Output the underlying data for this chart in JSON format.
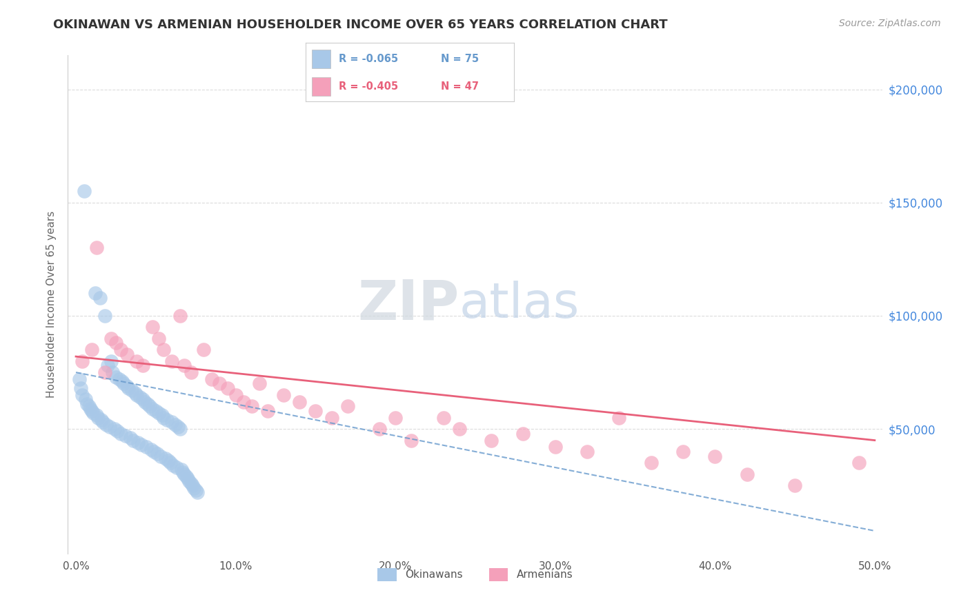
{
  "title": "OKINAWAN VS ARMENIAN HOUSEHOLDER INCOME OVER 65 YEARS CORRELATION CHART",
  "source": "Source: ZipAtlas.com",
  "ylabel": "Householder Income Over 65 years",
  "legend_blue_r": "R = -0.065",
  "legend_blue_n": "N = 75",
  "legend_pink_r": "R = -0.405",
  "legend_pink_n": "N = 47",
  "xlim": [
    -0.005,
    0.505
  ],
  "ylim": [
    -5000,
    215000
  ],
  "yticks": [
    50000,
    100000,
    150000,
    200000
  ],
  "ytick_labels": [
    "$50,000",
    "$100,000",
    "$150,000",
    "$200,000"
  ],
  "xticks": [
    0.0,
    0.1,
    0.2,
    0.3,
    0.4,
    0.5
  ],
  "xtick_labels": [
    "0.0%",
    "10.0%",
    "20.0%",
    "30.0%",
    "40.0%",
    "50.0%"
  ],
  "blue_color": "#a8c8e8",
  "pink_color": "#f4a0ba",
  "blue_line_color": "#6699cc",
  "pink_line_color": "#e8607a",
  "title_color": "#333333",
  "axis_label_color": "#666666",
  "tick_label_color_y": "#4488dd",
  "tick_label_color_x": "#555555",
  "grid_color": "#cccccc",
  "okinawan_x": [
    0.002,
    0.003,
    0.004,
    0.005,
    0.006,
    0.007,
    0.008,
    0.009,
    0.01,
    0.011,
    0.012,
    0.013,
    0.014,
    0.015,
    0.016,
    0.017,
    0.018,
    0.019,
    0.02,
    0.021,
    0.022,
    0.023,
    0.024,
    0.025,
    0.026,
    0.027,
    0.028,
    0.029,
    0.03,
    0.031,
    0.032,
    0.033,
    0.034,
    0.035,
    0.036,
    0.037,
    0.038,
    0.039,
    0.04,
    0.041,
    0.042,
    0.043,
    0.044,
    0.045,
    0.046,
    0.047,
    0.048,
    0.049,
    0.05,
    0.051,
    0.052,
    0.053,
    0.054,
    0.055,
    0.056,
    0.057,
    0.058,
    0.059,
    0.06,
    0.061,
    0.062,
    0.063,
    0.064,
    0.065,
    0.066,
    0.067,
    0.068,
    0.069,
    0.07,
    0.071,
    0.072,
    0.073,
    0.074,
    0.075,
    0.076
  ],
  "okinawan_y": [
    72000,
    68000,
    65000,
    155000,
    63000,
    61000,
    60000,
    59000,
    58000,
    57000,
    110000,
    56000,
    55000,
    108000,
    54000,
    53000,
    100000,
    52000,
    78000,
    51000,
    80000,
    75000,
    50000,
    73000,
    49000,
    72000,
    48000,
    71000,
    70000,
    47000,
    69000,
    68000,
    46000,
    67000,
    45000,
    66000,
    65000,
    44000,
    64000,
    43000,
    63000,
    62000,
    42000,
    61000,
    60000,
    41000,
    59000,
    40000,
    58000,
    39000,
    57000,
    38000,
    56000,
    55000,
    37000,
    54000,
    36000,
    35000,
    53000,
    34000,
    52000,
    33000,
    51000,
    50000,
    32000,
    31000,
    30000,
    29000,
    28000,
    27000,
    26000,
    25000,
    24000,
    23000,
    22000
  ],
  "armenian_x": [
    0.004,
    0.01,
    0.013,
    0.018,
    0.022,
    0.025,
    0.028,
    0.032,
    0.038,
    0.042,
    0.048,
    0.052,
    0.055,
    0.06,
    0.065,
    0.068,
    0.072,
    0.08,
    0.085,
    0.09,
    0.095,
    0.1,
    0.105,
    0.11,
    0.115,
    0.12,
    0.13,
    0.14,
    0.15,
    0.16,
    0.17,
    0.19,
    0.2,
    0.21,
    0.23,
    0.24,
    0.26,
    0.28,
    0.3,
    0.32,
    0.34,
    0.36,
    0.38,
    0.4,
    0.42,
    0.45,
    0.49
  ],
  "armenian_y": [
    80000,
    85000,
    130000,
    75000,
    90000,
    88000,
    85000,
    83000,
    80000,
    78000,
    95000,
    90000,
    85000,
    80000,
    100000,
    78000,
    75000,
    85000,
    72000,
    70000,
    68000,
    65000,
    62000,
    60000,
    70000,
    58000,
    65000,
    62000,
    58000,
    55000,
    60000,
    50000,
    55000,
    45000,
    55000,
    50000,
    45000,
    48000,
    42000,
    40000,
    55000,
    35000,
    40000,
    38000,
    30000,
    25000,
    35000
  ],
  "blue_trendline_x": [
    0.0,
    0.5
  ],
  "blue_trendline_y": [
    75000,
    5000
  ],
  "pink_trendline_x": [
    0.0,
    0.5
  ],
  "pink_trendline_y": [
    82000,
    45000
  ]
}
